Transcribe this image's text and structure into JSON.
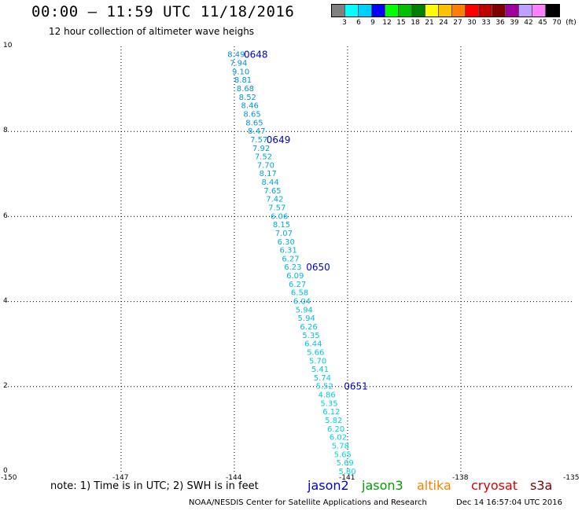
{
  "header": {
    "title": "00:00 – 11:59 UTC 11/18/2016",
    "subtitle": "12 hour collection of altimeter wave heighs"
  },
  "colorbar": {
    "colors": [
      "#808080",
      "#00ffff",
      "#00d0ff",
      "#0000ff",
      "#00ff00",
      "#00c000",
      "#008000",
      "#ffff00",
      "#ffc000",
      "#ff8000",
      "#ff0000",
      "#c00000",
      "#800000",
      "#a000a0",
      "#c0a0ff",
      "#ff80ff",
      "#000000"
    ],
    "labels": [
      "3",
      "6",
      "9",
      "12",
      "15",
      "18",
      "21",
      "24",
      "27",
      "30",
      "33",
      "36",
      "39",
      "42",
      "45",
      "70",
      "(ft)"
    ]
  },
  "axes": {
    "y_ticks": [
      "10",
      "8",
      "6",
      "4",
      "2",
      "0"
    ],
    "x_ticks": [
      "-150",
      "-147",
      "-144",
      "-141",
      "-138",
      "-135"
    ]
  },
  "chart_data": {
    "type": "scatter",
    "xlim": [
      -150,
      -135
    ],
    "ylim": [
      0,
      10
    ],
    "grid": true,
    "points": [
      {
        "x": -143.95,
        "y": 9.82,
        "label": "8.49"
      },
      {
        "x": -143.89,
        "y": 9.62,
        "label": "7.94"
      },
      {
        "x": -143.83,
        "y": 9.42,
        "label": "9.10"
      },
      {
        "x": -143.77,
        "y": 9.22,
        "label": "8.81"
      },
      {
        "x": -143.71,
        "y": 9.02,
        "label": "8.68"
      },
      {
        "x": -143.65,
        "y": 8.82,
        "label": "8.52"
      },
      {
        "x": -143.59,
        "y": 8.62,
        "label": "8.46"
      },
      {
        "x": -143.53,
        "y": 8.42,
        "label": "8.65"
      },
      {
        "x": -143.47,
        "y": 8.22,
        "label": "8.65"
      },
      {
        "x": -143.41,
        "y": 8.02,
        "label": "8.47"
      },
      {
        "x": -143.35,
        "y": 7.82,
        "label": "7.57"
      },
      {
        "x": -143.29,
        "y": 7.62,
        "label": "7.92"
      },
      {
        "x": -143.23,
        "y": 7.42,
        "label": "7.52"
      },
      {
        "x": -143.17,
        "y": 7.22,
        "label": "7.70"
      },
      {
        "x": -143.11,
        "y": 7.02,
        "label": "8.17"
      },
      {
        "x": -143.05,
        "y": 6.82,
        "label": "8.44"
      },
      {
        "x": -142.99,
        "y": 6.62,
        "label": "7.65"
      },
      {
        "x": -142.93,
        "y": 6.42,
        "label": "7.42"
      },
      {
        "x": -142.87,
        "y": 6.22,
        "label": "7.57"
      },
      {
        "x": -142.81,
        "y": 6.02,
        "label": "6.06"
      },
      {
        "x": -142.75,
        "y": 5.82,
        "label": "8.15"
      },
      {
        "x": -142.69,
        "y": 5.62,
        "label": "7.07"
      },
      {
        "x": -142.63,
        "y": 5.42,
        "label": "6.30"
      },
      {
        "x": -142.57,
        "y": 5.22,
        "label": "6.31"
      },
      {
        "x": -142.51,
        "y": 5.02,
        "label": "6.27"
      },
      {
        "x": -142.45,
        "y": 4.82,
        "label": "6.23"
      },
      {
        "x": -142.39,
        "y": 4.62,
        "label": "6.09"
      },
      {
        "x": -142.33,
        "y": 4.42,
        "label": "6.27"
      },
      {
        "x": -142.27,
        "y": 4.22,
        "label": "6.58"
      },
      {
        "x": -142.21,
        "y": 4.02,
        "label": "6.04"
      },
      {
        "x": -142.15,
        "y": 3.82,
        "label": "5.94"
      },
      {
        "x": -142.09,
        "y": 3.62,
        "label": "5.94"
      },
      {
        "x": -142.03,
        "y": 3.42,
        "label": "6.26"
      },
      {
        "x": -141.97,
        "y": 3.22,
        "label": "5.35"
      },
      {
        "x": -141.91,
        "y": 3.02,
        "label": "6.44"
      },
      {
        "x": -141.85,
        "y": 2.82,
        "label": "5.66"
      },
      {
        "x": -141.79,
        "y": 2.62,
        "label": "5.70"
      },
      {
        "x": -141.73,
        "y": 2.42,
        "label": "5.41"
      },
      {
        "x": -141.67,
        "y": 2.22,
        "label": "5.74"
      },
      {
        "x": -141.61,
        "y": 2.02,
        "label": "5.52"
      },
      {
        "x": -141.55,
        "y": 1.82,
        "label": "4.86"
      },
      {
        "x": -141.49,
        "y": 1.62,
        "label": "5.35"
      },
      {
        "x": -141.43,
        "y": 1.42,
        "label": "6.12"
      },
      {
        "x": -141.37,
        "y": 1.22,
        "label": "5.82"
      },
      {
        "x": -141.31,
        "y": 1.02,
        "label": "6.20"
      },
      {
        "x": -141.25,
        "y": 0.82,
        "label": "6.02"
      },
      {
        "x": -141.19,
        "y": 0.62,
        "label": "5.78"
      },
      {
        "x": -141.13,
        "y": 0.42,
        "label": "5.65"
      },
      {
        "x": -141.07,
        "y": 0.22,
        "label": "5.69"
      },
      {
        "x": -141.01,
        "y": 0.02,
        "label": "5.80"
      }
    ],
    "time_labels": [
      {
        "x": -143.75,
        "y": 9.82,
        "label": "0648"
      },
      {
        "x": -143.15,
        "y": 7.82,
        "label": "0649"
      },
      {
        "x": -142.1,
        "y": 4.82,
        "label": "0650"
      },
      {
        "x": -141.1,
        "y": 2.02,
        "label": "0651"
      }
    ]
  },
  "note": "note: 1) Time is in UTC; 2) SWH is in feet",
  "legend": [
    {
      "label": "jason2",
      "color": "#0000cc"
    },
    {
      "label": "jason3",
      "color": "#00a000"
    },
    {
      "label": "altika",
      "color": "#ff8000"
    },
    {
      "label": "cryosat",
      "color": "#dd0000"
    },
    {
      "label": "s3a",
      "color": "#800000"
    }
  ],
  "footer": {
    "credit": "NOAA/NESDIS Center for Satellite Applications and Research",
    "timestamp": "Dec 14 16:57:04 UTC 2016"
  }
}
